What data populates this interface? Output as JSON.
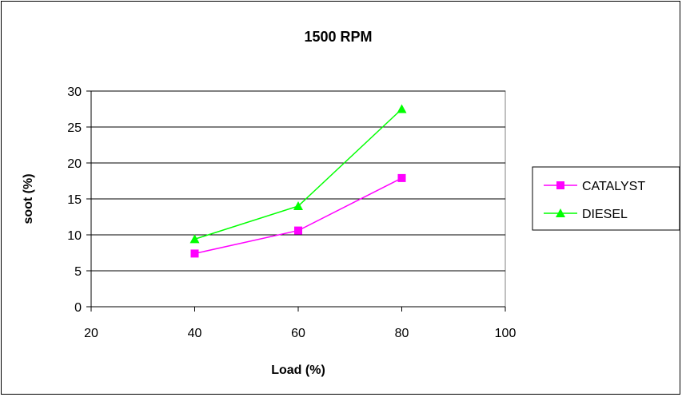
{
  "chart_data": {
    "type": "line",
    "title": "1500 RPM",
    "xlabel": "Load (%)",
    "ylabel": "soot (%)",
    "xlim": [
      20,
      100
    ],
    "ylim": [
      0,
      30
    ],
    "x_ticks": [
      20,
      40,
      60,
      80,
      100
    ],
    "y_ticks": [
      0,
      5,
      10,
      15,
      20,
      25,
      30
    ],
    "grid": "horizontal",
    "legend_position": "right",
    "series": [
      {
        "name": "CATALYST",
        "color": "#ff00ff",
        "marker": "square",
        "x": [
          40,
          60,
          80
        ],
        "y": [
          7.4,
          10.6,
          17.9
        ]
      },
      {
        "name": "DIESEL",
        "color": "#00ff00",
        "marker": "triangle",
        "x": [
          40,
          60,
          80
        ],
        "y": [
          9.4,
          14.0,
          27.5
        ]
      }
    ]
  }
}
